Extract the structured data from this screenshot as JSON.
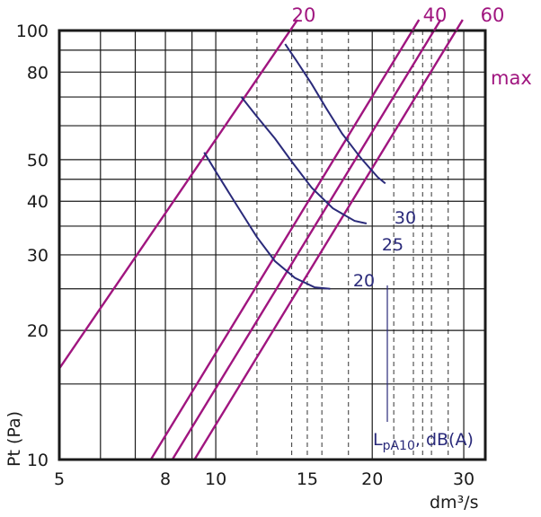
{
  "chart_data": {
    "type": "line",
    "title": "",
    "xlabel": "dm³/s",
    "ylabel": "Pt (Pa)",
    "x_scale": "log",
    "y_scale": "log",
    "xlim": [
      5,
      33
    ],
    "ylim": [
      10,
      100
    ],
    "grid": true,
    "x_ticks": [
      5,
      6,
      7,
      8,
      9,
      10,
      12,
      14,
      15,
      16,
      18,
      20,
      22,
      24,
      25,
      26,
      28,
      30
    ],
    "x_tick_labels": [
      "5",
      "8",
      "10",
      "15",
      "20",
      "30"
    ],
    "y_ticks": [
      10,
      15,
      20,
      25,
      30,
      35,
      40,
      45,
      50,
      60,
      70,
      80,
      90,
      100
    ],
    "y_tick_labels": [
      "10",
      "20",
      "30",
      "40",
      "50",
      "80",
      "100"
    ],
    "colors": {
      "iso_lines": "#a0157f",
      "curves": "#2a2a7a",
      "grid": "#1a1a1a"
    },
    "iso_lines_name": "",
    "iso_lines": [
      {
        "label": "20",
        "points": [
          [
            5,
            16.3
          ],
          [
            13.9,
            100
          ]
        ]
      },
      {
        "label": "40",
        "points": [
          [
            7.5,
            10
          ],
          [
            23.9,
            100
          ]
        ]
      },
      {
        "label": "60",
        "points": [
          [
            8.25,
            10
          ],
          [
            26.3,
            100
          ]
        ]
      },
      {
        "label": "max",
        "points": [
          [
            9.1,
            10
          ],
          [
            29.0,
            100
          ]
        ]
      }
    ],
    "series_name": "LpA10, dB(A)",
    "series_name_main": "L",
    "series_name_sub": "pA10",
    "series_name_rest": ", dB(A)",
    "series": [
      {
        "label": "20",
        "points": [
          [
            9.5,
            52
          ],
          [
            10.1,
            46
          ],
          [
            11.0,
            39
          ],
          [
            12.0,
            33
          ],
          [
            13.0,
            29
          ],
          [
            14.2,
            26.5
          ],
          [
            15.5,
            25.2
          ],
          [
            16.6,
            25.0
          ]
        ]
      },
      {
        "label": "25",
        "points": [
          [
            11.2,
            70
          ],
          [
            12.0,
            63
          ],
          [
            13.0,
            56
          ],
          [
            14.0,
            49.5
          ],
          [
            15.3,
            43
          ],
          [
            16.8,
            38.5
          ],
          [
            18.5,
            36
          ],
          [
            19.5,
            35.5
          ]
        ]
      },
      {
        "label": "30",
        "points": [
          [
            13.6,
            93
          ],
          [
            14.3,
            85
          ],
          [
            15.3,
            75
          ],
          [
            16.3,
            66
          ],
          [
            17.5,
            57.5
          ],
          [
            19.0,
            50.5
          ],
          [
            20.5,
            45.5
          ],
          [
            21.2,
            44
          ]
        ]
      }
    ]
  }
}
